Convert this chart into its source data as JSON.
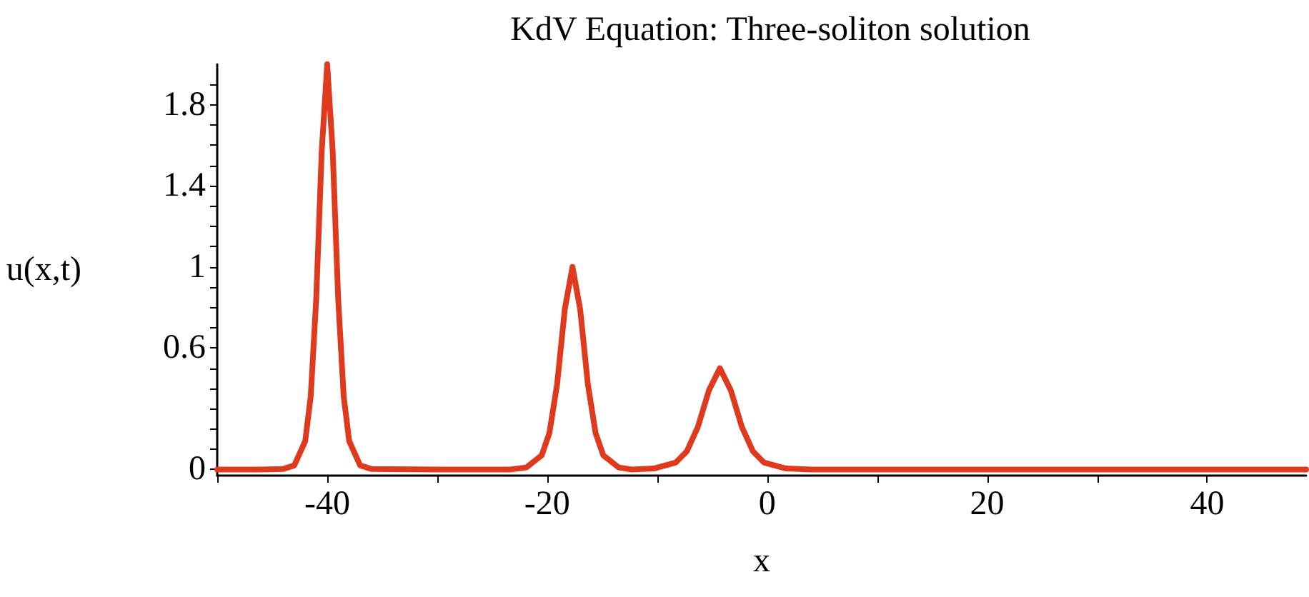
{
  "chart_data": {
    "type": "line",
    "title": "KdV Equation: Three-soliton solution",
    "xlabel": "x",
    "ylabel": "u(x,t)",
    "x": [
      -50,
      -46,
      -44,
      -43,
      -42,
      -41.5,
      -41,
      -40.5,
      -40,
      -39.5,
      -39,
      -38.5,
      -38,
      -37,
      -36,
      -30,
      -23.4,
      -21.9,
      -20.5,
      -19.8,
      -19.1,
      -18.4,
      -17.7,
      -17.0,
      -16.3,
      -15.6,
      -14.9,
      -13.5,
      -12.3,
      -10.3,
      -8.3,
      -7.3,
      -6.3,
      -5.3,
      -4.3,
      -3.3,
      -2.3,
      -1.3,
      -0.3,
      1.7,
      4,
      20,
      49
    ],
    "series": [
      {
        "color": "#e03a1e",
        "values": [
          0,
          0,
          0.003,
          0.02,
          0.14,
          0.36,
          0.84,
          1.57,
          2.0,
          1.57,
          0.84,
          0.36,
          0.14,
          0.02,
          0.003,
          0,
          0,
          0.01,
          0.07,
          0.18,
          0.42,
          0.79,
          1.0,
          0.79,
          0.42,
          0.18,
          0.07,
          0.01,
          0,
          0.005,
          0.035,
          0.09,
          0.21,
          0.39,
          0.5,
          0.39,
          0.21,
          0.09,
          0.035,
          0.005,
          0,
          0,
          0
        ]
      }
    ],
    "xlim": [
      -50,
      49
    ],
    "ylim": [
      -0.03,
      2.0
    ],
    "xticks": [
      {
        "value": -50,
        "label": null
      },
      -40,
      {
        "value": -30,
        "label": null
      },
      -20,
      {
        "value": -10,
        "label": null
      },
      0,
      {
        "value": 10,
        "label": null
      },
      20,
      {
        "value": 30,
        "label": null
      },
      40
    ],
    "yticks": [
      0,
      {
        "value": 0.1,
        "label": null
      },
      {
        "value": 0.2,
        "label": null
      },
      {
        "value": 0.3,
        "label": null
      },
      {
        "value": 0.4,
        "label": null
      },
      {
        "value": 0.5,
        "label": null
      },
      0.6,
      {
        "value": 0.7,
        "label": null
      },
      {
        "value": 0.8,
        "label": null
      },
      {
        "value": 0.9,
        "label": null
      },
      1,
      {
        "value": 1.1,
        "label": null
      },
      {
        "value": 1.2,
        "label": null
      },
      {
        "value": 1.3,
        "label": null
      },
      1.4,
      {
        "value": 1.5,
        "label": null
      },
      {
        "value": 1.6,
        "label": null
      },
      {
        "value": 1.7,
        "label": null
      },
      1.8,
      {
        "value": 1.9,
        "label": null
      }
    ],
    "grid": false,
    "marker": "none",
    "line_style": "solid"
  }
}
